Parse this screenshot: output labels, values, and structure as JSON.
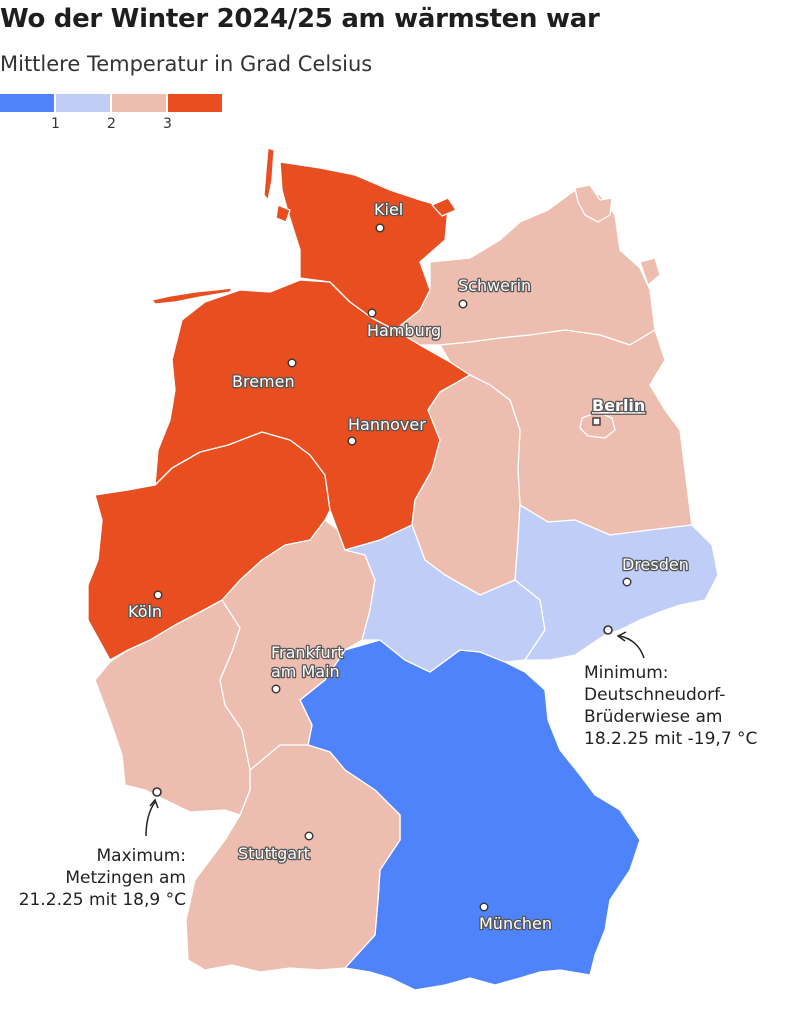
{
  "title": "Wo der Winter 2024/25 am wärmsten war",
  "subtitle": "Mittlere Temperatur in Grad Celsius",
  "legend": {
    "colors": [
      "#4f83fb",
      "#bfcdf7",
      "#edbdaf",
      "#e84e20"
    ],
    "ticks": [
      "1",
      "2",
      "3"
    ]
  },
  "cities": {
    "kiel": "Kiel",
    "hamburg": "Hamburg",
    "schwerin": "Schwerin",
    "bremen": "Bremen",
    "hannover": "Hannover",
    "berlin": "Berlin",
    "dresden": "Dresden",
    "koeln": "Köln",
    "frankfurt_1": "Frankfurt",
    "frankfurt_2": "am Main",
    "stuttgart": "Stuttgart",
    "muenchen": "München"
  },
  "annotations": {
    "minimum": [
      "Minimum:",
      "Deutschneudorf-",
      "Brüderwiese am",
      "18.2.25 mit -19,7 °C"
    ],
    "maximum": [
      "Maximum:",
      "Metzingen am",
      "21.2.25 mit 18,9 °C"
    ]
  }
}
